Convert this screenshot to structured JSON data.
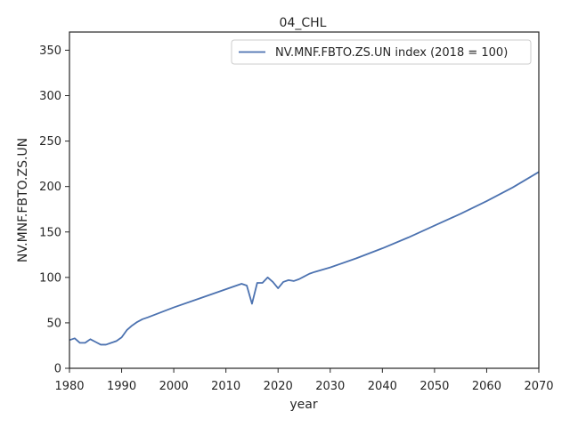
{
  "chart_data": {
    "type": "line",
    "title": "04_CHL",
    "xlabel": "year",
    "ylabel": "NV.MNF.FBTO.ZS.UN",
    "xlim": [
      1980,
      2070
    ],
    "ylim": [
      0,
      370
    ],
    "xticks": [
      1980,
      1990,
      2000,
      2010,
      2020,
      2030,
      2040,
      2050,
      2060,
      2070
    ],
    "yticks": [
      0,
      50,
      100,
      150,
      200,
      250,
      300,
      350
    ],
    "grid": false,
    "legend_position": "top-right",
    "series": [
      {
        "name": "NV.MNF.FBTO.ZS.UN index (2018 = 100)",
        "color": "#4c72b0",
        "points": [
          [
            1980,
            31
          ],
          [
            1981,
            33
          ],
          [
            1982,
            28
          ],
          [
            1983,
            28
          ],
          [
            1984,
            32
          ],
          [
            1985,
            29
          ],
          [
            1986,
            26
          ],
          [
            1987,
            26
          ],
          [
            1988,
            28
          ],
          [
            1989,
            30
          ],
          [
            1990,
            34
          ],
          [
            1991,
            42
          ],
          [
            1992,
            47
          ],
          [
            1993,
            51
          ],
          [
            1994,
            54
          ],
          [
            1995,
            56
          ],
          [
            2000,
            67
          ],
          [
            2005,
            77
          ],
          [
            2010,
            87
          ],
          [
            2013,
            93
          ],
          [
            2014,
            91
          ],
          [
            2015,
            71
          ],
          [
            2016,
            94
          ],
          [
            2017,
            94
          ],
          [
            2018,
            100
          ],
          [
            2019,
            95
          ],
          [
            2020,
            88
          ],
          [
            2021,
            95
          ],
          [
            2022,
            97
          ],
          [
            2023,
            96
          ],
          [
            2024,
            98
          ],
          [
            2025,
            101
          ],
          [
            2026,
            104
          ],
          [
            2027,
            106
          ],
          [
            2030,
            111
          ],
          [
            2035,
            121
          ],
          [
            2040,
            132
          ],
          [
            2045,
            144
          ],
          [
            2050,
            157
          ],
          [
            2055,
            170
          ],
          [
            2060,
            184
          ],
          [
            2065,
            199
          ],
          [
            2070,
            216
          ]
        ]
      }
    ]
  }
}
